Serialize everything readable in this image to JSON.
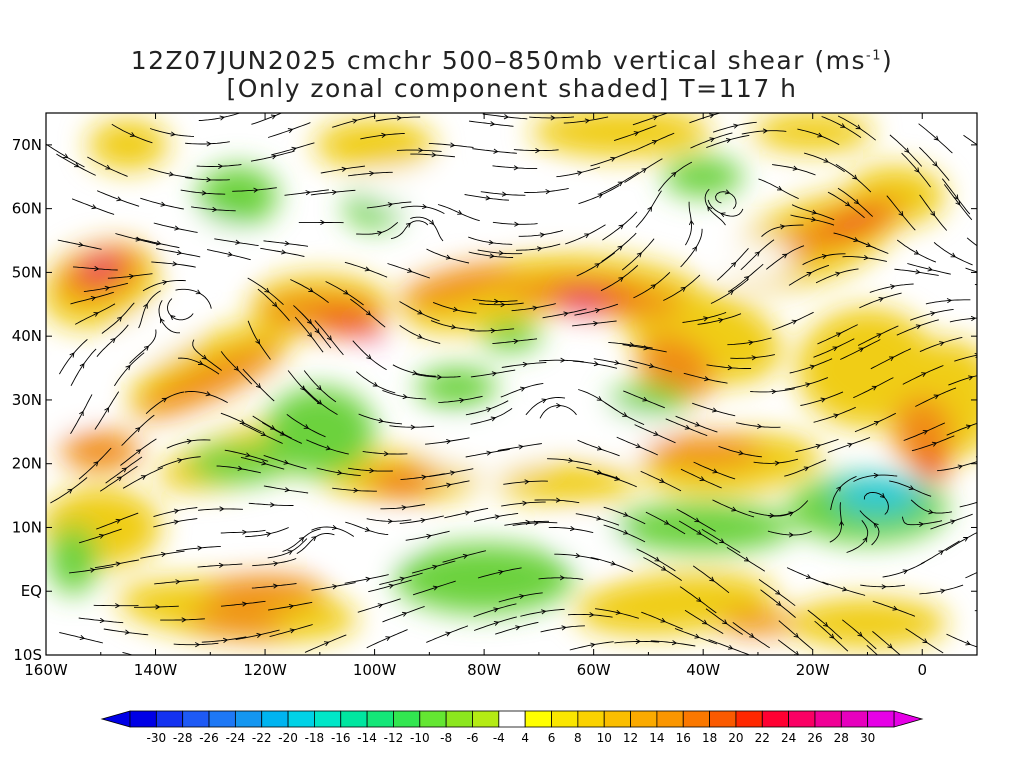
{
  "title": {
    "line1": "12Z07JUN2025 cmchr 500–850mb vertical shear (ms",
    "line1_unit_exp": "-1",
    "line1_end": ")",
    "line2": "[Only zonal component shaded] T=117 h"
  },
  "axes": {
    "lat_labels": [
      "70N",
      "60N",
      "50N",
      "40N",
      "30N",
      "20N",
      "10N",
      "EQ",
      "10S"
    ],
    "lat_values": [
      70,
      60,
      50,
      40,
      30,
      20,
      10,
      0,
      -10
    ],
    "lon_labels": [
      "160W",
      "140W",
      "120W",
      "100W",
      "80W",
      "60W",
      "40W",
      "20W",
      "0"
    ],
    "lon_values": [
      -160,
      -140,
      -120,
      -100,
      -80,
      -60,
      -40,
      -20,
      0
    ],
    "lon_range": [
      -160,
      10
    ],
    "lat_range": [
      -10,
      75
    ]
  },
  "colorbar": {
    "labels": [
      "-30",
      "-28",
      "-26",
      "-24",
      "-22",
      "-20",
      "-18",
      "-16",
      "-14",
      "-12",
      "-10",
      "-8",
      "-6",
      "-4",
      "4",
      "6",
      "8",
      "10",
      "12",
      "14",
      "16",
      "18",
      "20",
      "22",
      "24",
      "26",
      "28",
      "30"
    ],
    "colors": [
      "#0000e6",
      "#1432f0",
      "#1e5af5",
      "#1e78f5",
      "#1496f0",
      "#00b4f0",
      "#00d2e6",
      "#00e6c8",
      "#00e6a0",
      "#14e678",
      "#32e650",
      "#64e632",
      "#8ce61e",
      "#b4eb14",
      "#ffffff",
      "#ffff00",
      "#fae600",
      "#fad200",
      "#fabe00",
      "#faaa00",
      "#fa9600",
      "#fa7800",
      "#fa5a00",
      "#ff2800",
      "#ff0032",
      "#fa0064",
      "#f00096",
      "#e600be",
      "#e600e6"
    ],
    "under_color": "#0000e6",
    "over_color": "#e600e6"
  },
  "colors": {
    "shade_green": "#6cd23c",
    "shade_yellow": "#f0cd14",
    "shade_orange": "#f08c14",
    "shade_red": "#ee4a1e",
    "shade_magenta": "#e6288c",
    "shade_cyan": "#28c8d2",
    "streamline": "#000000"
  }
}
